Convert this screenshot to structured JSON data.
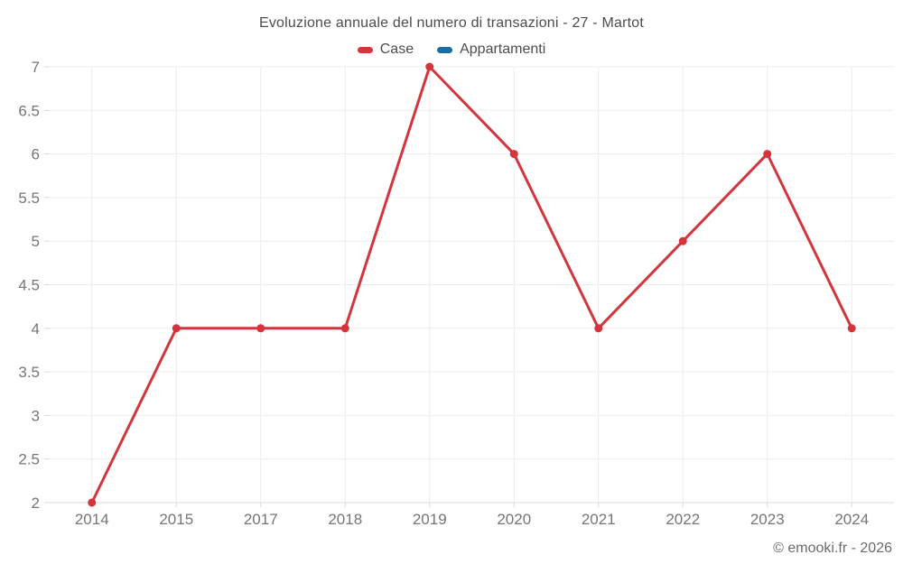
{
  "chart_data": {
    "type": "line",
    "title": "Evoluzione annuale del numero di transazioni - 27 - Martot",
    "categories": [
      "2014",
      "2015",
      "2017",
      "2018",
      "2019",
      "2020",
      "2021",
      "2022",
      "2023",
      "2024"
    ],
    "series": [
      {
        "name": "Case",
        "color": "#d4353c",
        "values": [
          2,
          4,
          4,
          4,
          7,
          6,
          4,
          5,
          6,
          4
        ]
      },
      {
        "name": "Appartamenti",
        "color": "#1a6da0",
        "values": []
      }
    ],
    "xlabel": "",
    "ylabel": "",
    "ylim": [
      2,
      7
    ],
    "ytick_step": 0.5,
    "ytick_labels": [
      "2",
      "2.5",
      "3",
      "3.5",
      "4",
      "4.5",
      "5",
      "5.5",
      "6",
      "6.5",
      "7"
    ],
    "grid": true,
    "legend_position": "top"
  },
  "footer": {
    "credit": "© emooki.fr - 2026"
  }
}
